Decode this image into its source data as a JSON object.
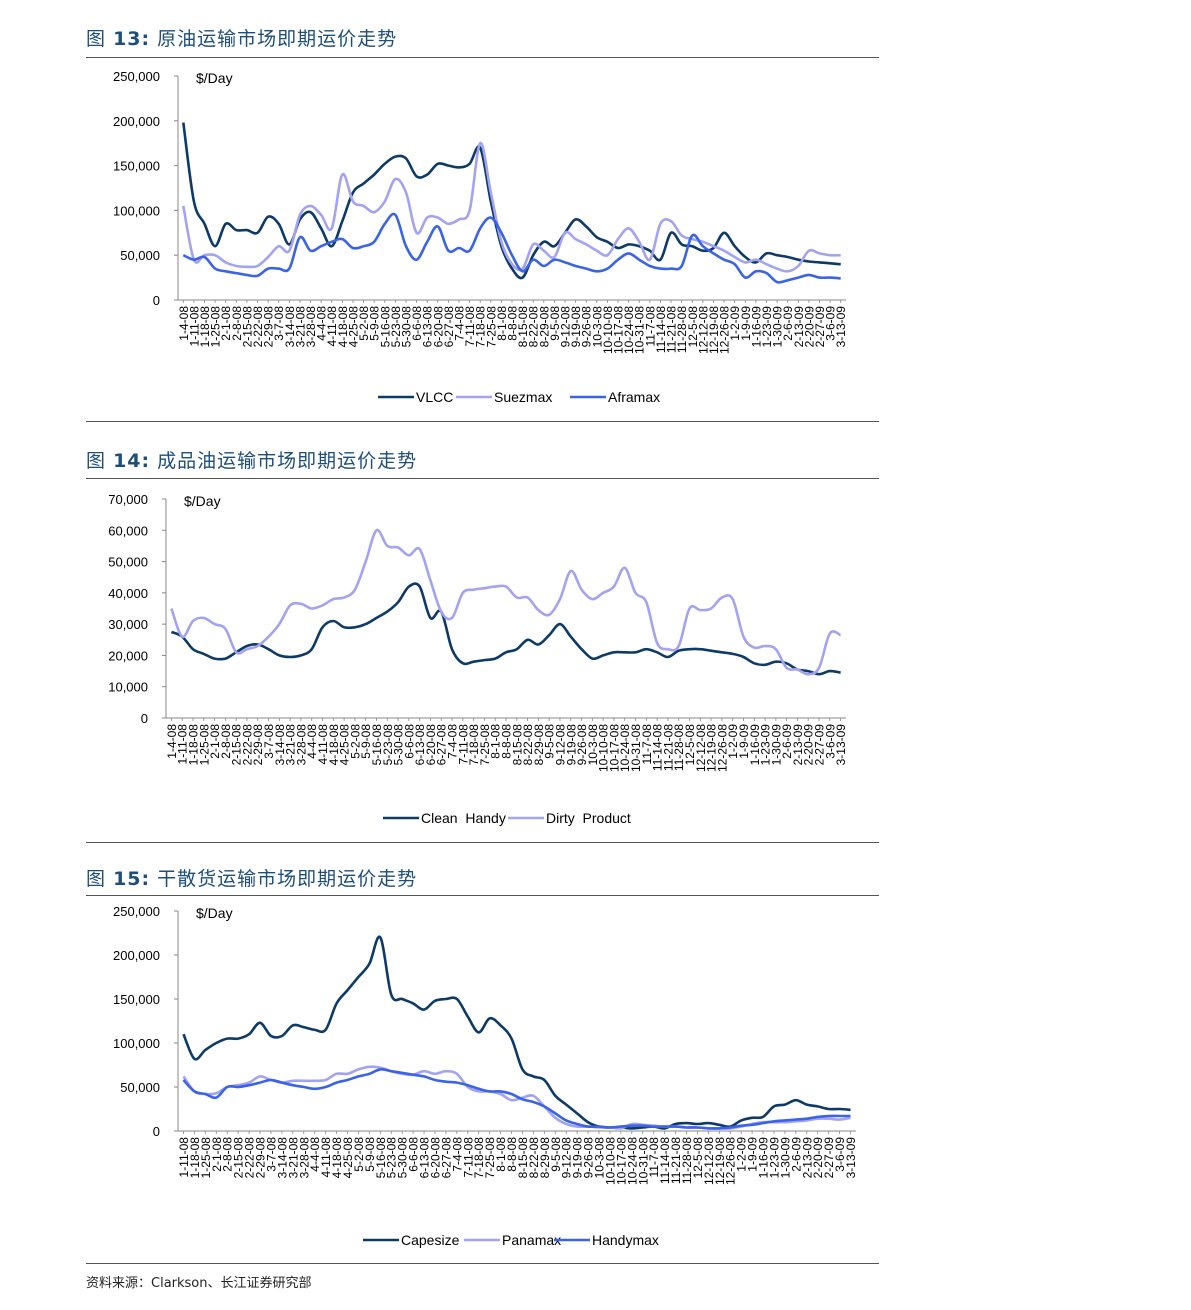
{
  "colors": {
    "dark": "#0d3a66",
    "light": "#a3a3f2",
    "mid": "#3a63e8",
    "title": "#1f4e79"
  },
  "figures": [
    {
      "label": "图",
      "number": "13:",
      "text": "原油运输市场即期运价走势"
    },
    {
      "label": "图",
      "number": "14:",
      "text": "成品油运输市场即期运价走势"
    },
    {
      "label": "图",
      "number": "15:",
      "text": "干散货运输市场即期运价走势"
    }
  ],
  "source_note": "资料来源：Clarkson、长江证券研究部",
  "chart_data": [
    {
      "type": "line",
      "unit_label": "$/Day",
      "ylim": [
        0,
        250000
      ],
      "yticks": [
        "250,000",
        "200,000",
        "150,000",
        "100,000",
        "50,000",
        "0"
      ],
      "categories": [
        "1-4-08",
        "1-11-08",
        "1-18-08",
        "1-25-08",
        "2-1-08",
        "2-8-08",
        "2-15-08",
        "2-22-08",
        "2-29-08",
        "3-7-08",
        "3-14-08",
        "3-21-08",
        "3-28-08",
        "4-4-08",
        "4-11-08",
        "4-18-08",
        "4-25-08",
        "5-2-08",
        "5-9-08",
        "5-16-08",
        "5-23-08",
        "5-30-08",
        "6-6-08",
        "6-13-08",
        "6-20-08",
        "6-27-08",
        "7-4-08",
        "7-11-08",
        "7-18-08",
        "7-25-08",
        "8-1-08",
        "8-8-08",
        "8-15-08",
        "8-22-08",
        "8-29-08",
        "9-5-08",
        "9-12-08",
        "9-19-08",
        "9-26-08",
        "10-3-08",
        "10-10-08",
        "10-17-08",
        "10-24-08",
        "10-31-08",
        "11-7-08",
        "11-14-08",
        "11-21-08",
        "11-28-08",
        "12-5-08",
        "12-12-08",
        "12-19-08",
        "12-26-08",
        "1-2-09",
        "1-9-09",
        "1-16-09",
        "1-23-09",
        "1-30-09",
        "2-6-09",
        "2-13-09",
        "2-20-09",
        "2-27-09",
        "3-6-09",
        "3-13-09"
      ],
      "series": [
        {
          "name": "VLCC",
          "color": "#0d3a66",
          "values": [
            198000,
            110000,
            85000,
            60000,
            85000,
            78000,
            78000,
            75000,
            93000,
            85000,
            62000,
            90000,
            98000,
            80000,
            60000,
            88000,
            120000,
            130000,
            140000,
            152000,
            160000,
            158000,
            138000,
            140000,
            152000,
            150000,
            148000,
            152000,
            170000,
            110000,
            60000,
            35000,
            25000,
            50000,
            65000,
            60000,
            75000,
            90000,
            82000,
            70000,
            65000,
            58000,
            62000,
            60000,
            55000,
            45000,
            75000,
            62000,
            60000,
            55000,
            58000,
            75000,
            60000,
            48000,
            42000,
            52000,
            50000,
            48000,
            45000,
            43000,
            42000,
            41000,
            40000
          ]
        },
        {
          "name": "Suezmax",
          "color": "#a3a3f2",
          "values": [
            105000,
            45000,
            50000,
            50000,
            42000,
            38000,
            37000,
            38000,
            48000,
            60000,
            55000,
            95000,
            105000,
            95000,
            80000,
            140000,
            110000,
            105000,
            98000,
            110000,
            135000,
            120000,
            75000,
            92000,
            92000,
            85000,
            90000,
            100000,
            175000,
            120000,
            65000,
            40000,
            35000,
            62000,
            55000,
            48000,
            75000,
            68000,
            62000,
            55000,
            50000,
            68000,
            80000,
            65000,
            45000,
            85000,
            88000,
            72000,
            68000,
            65000,
            60000,
            55000,
            48000,
            42000,
            45000,
            40000,
            35000,
            32000,
            38000,
            55000,
            52000,
            50000,
            50000
          ]
        },
        {
          "name": "Aframax",
          "color": "#3a63e8",
          "values": [
            50000,
            45000,
            48000,
            35000,
            32000,
            30000,
            28000,
            27000,
            35000,
            35000,
            35000,
            70000,
            55000,
            60000,
            65000,
            68000,
            58000,
            60000,
            65000,
            85000,
            95000,
            60000,
            45000,
            65000,
            82000,
            55000,
            58000,
            55000,
            80000,
            92000,
            75000,
            50000,
            32000,
            45000,
            38000,
            45000,
            42000,
            38000,
            35000,
            32000,
            35000,
            45000,
            52000,
            45000,
            38000,
            35000,
            35000,
            38000,
            72000,
            60000,
            52000,
            45000,
            40000,
            25000,
            32000,
            30000,
            20000,
            22000,
            25000,
            28000,
            25000,
            25000,
            24000
          ]
        }
      ]
    },
    {
      "type": "line",
      "unit_label": "$/Day",
      "ylim": [
        0,
        70000
      ],
      "yticks": [
        "70,000",
        "60,000",
        "50,000",
        "40,000",
        "30,000",
        "20,000",
        "10,000",
        "0"
      ],
      "categories": [
        "1-4-08",
        "1-11-08",
        "1-18-08",
        "1-25-08",
        "2-1-08",
        "2-8-08",
        "2-15-08",
        "2-22-08",
        "2-29-08",
        "3-7-08",
        "3-14-08",
        "3-21-08",
        "3-28-08",
        "4-4-08",
        "4-11-08",
        "4-18-08",
        "4-25-08",
        "5-2-08",
        "5-9-08",
        "5-16-08",
        "5-23-08",
        "5-30-08",
        "6-6-08",
        "6-13-08",
        "6-20-08",
        "6-27-08",
        "7-4-08",
        "7-11-08",
        "7-18-08",
        "7-25-08",
        "8-1-08",
        "8-8-08",
        "8-15-08",
        "8-22-08",
        "8-29-08",
        "9-5-08",
        "9-12-08",
        "9-19-08",
        "9-26-08",
        "10-3-08",
        "10-10-08",
        "10-17-08",
        "10-24-08",
        "10-31-08",
        "11-7-08",
        "11-14-08",
        "11-21-08",
        "11-28-08",
        "12-5-08",
        "12-12-08",
        "12-19-08",
        "12-26-08",
        "1-2-09",
        "1-9-09",
        "1-16-09",
        "1-23-09",
        "1-30-09",
        "2-6-09",
        "2-13-09",
        "2-20-09",
        "2-27-09",
        "3-6-09",
        "3-13-09"
      ],
      "series": [
        {
          "name": "Clean  Handy",
          "color": "#0d3a66",
          "values": [
            27500,
            26000,
            22000,
            20500,
            19000,
            19000,
            21000,
            23000,
            23500,
            22000,
            20000,
            19500,
            20000,
            22000,
            29000,
            31000,
            29000,
            29000,
            30000,
            32000,
            34000,
            37000,
            42000,
            42000,
            32000,
            34000,
            22000,
            17500,
            18000,
            18500,
            19000,
            21000,
            22000,
            25000,
            23500,
            26500,
            30000,
            26000,
            22000,
            19000,
            20000,
            21000,
            21000,
            21000,
            22000,
            21000,
            19500,
            21500,
            22000,
            22000,
            21500,
            21000,
            20500,
            19500,
            17500,
            17000,
            18000,
            17500,
            15500,
            15000,
            14000,
            15000,
            14500
          ]
        },
        {
          "name": "Dirty  Product",
          "color": "#a3a3f2",
          "values": [
            35000,
            26000,
            31000,
            32000,
            30000,
            28500,
            21000,
            22000,
            23000,
            26000,
            30000,
            36000,
            36500,
            35000,
            36000,
            38000,
            38500,
            41000,
            50000,
            60000,
            55000,
            54500,
            52000,
            54000,
            44000,
            34000,
            32000,
            40000,
            41000,
            41500,
            42000,
            42000,
            38500,
            38500,
            34500,
            33000,
            38000,
            47000,
            41000,
            38000,
            40000,
            42000,
            48000,
            40000,
            37000,
            24000,
            22000,
            23000,
            35000,
            34500,
            35000,
            38500,
            38000,
            26000,
            22500,
            23000,
            22000,
            16000,
            15500,
            14000,
            16000,
            27000,
            26500
          ]
        }
      ]
    },
    {
      "type": "line",
      "unit_label": "$/Day",
      "ylim": [
        0,
        250000
      ],
      "yticks": [
        "250,000",
        "200,000",
        "150,000",
        "100,000",
        "50,000",
        "0"
      ],
      "categories": [
        "1-11-08",
        "1-18-08",
        "1-25-08",
        "2-1-08",
        "2-8-08",
        "2-15-08",
        "2-22-08",
        "2-29-08",
        "3-7-08",
        "3-14-08",
        "3-21-08",
        "3-28-08",
        "4-4-08",
        "4-11-08",
        "4-18-08",
        "4-25-08",
        "5-2-08",
        "5-9-08",
        "5-16-08",
        "5-23-08",
        "5-30-08",
        "6-6-08",
        "6-13-08",
        "6-20-08",
        "6-27-08",
        "7-4-08",
        "7-11-08",
        "7-18-08",
        "7-25-08",
        "8-1-08",
        "8-8-08",
        "8-15-08",
        "8-22-08",
        "8-29-08",
        "9-5-08",
        "9-12-08",
        "9-19-08",
        "9-26-08",
        "10-3-08",
        "10-10-08",
        "10-17-08",
        "10-24-08",
        "10-31-08",
        "11-7-08",
        "11-14-08",
        "11-21-08",
        "11-28-08",
        "12-5-08",
        "12-12-08",
        "12-19-08",
        "12-26-08",
        "1-2-09",
        "1-9-09",
        "1-16-09",
        "1-23-09",
        "1-30-09",
        "2-6-09",
        "2-13-09",
        "2-20-09",
        "2-27-09",
        "3-6-09",
        "3-13-09"
      ],
      "series": [
        {
          "name": "Capesize",
          "color": "#0d3a66",
          "values": [
            110000,
            82000,
            92000,
            100000,
            105000,
            105000,
            110000,
            123000,
            108000,
            108000,
            120000,
            118000,
            115000,
            115000,
            145000,
            160000,
            175000,
            190000,
            220000,
            155000,
            150000,
            145000,
            138000,
            148000,
            150000,
            150000,
            130000,
            112000,
            128000,
            120000,
            105000,
            70000,
            62000,
            58000,
            40000,
            30000,
            20000,
            10000,
            5000,
            4000,
            4000,
            3000,
            4000,
            5000,
            3000,
            8000,
            9000,
            8000,
            9000,
            7000,
            5000,
            12000,
            15000,
            16000,
            28000,
            30000,
            35000,
            30000,
            28000,
            25000,
            25000,
            24000
          ]
        },
        {
          "name": "Panamax",
          "color": "#a3a3f2",
          "values": [
            62000,
            45000,
            42000,
            43000,
            50000,
            52000,
            55000,
            62000,
            58000,
            55000,
            57000,
            57000,
            57000,
            58000,
            65000,
            65000,
            70000,
            73000,
            72000,
            68000,
            65000,
            64000,
            68000,
            65000,
            68000,
            65000,
            50000,
            45000,
            45000,
            42000,
            35000,
            38000,
            40000,
            28000,
            15000,
            8000,
            5000,
            5000,
            4000,
            4000,
            3000,
            8000,
            7000,
            6000,
            5000,
            5000,
            4000,
            4000,
            3000,
            3000,
            3000,
            5000,
            8000,
            10000,
            10000,
            10000,
            11000,
            12000,
            14000,
            14000,
            13000,
            15000
          ]
        },
        {
          "name": "Handymax",
          "color": "#3a63e8",
          "values": [
            58000,
            45000,
            42000,
            38000,
            50000,
            50000,
            52000,
            55000,
            58000,
            55000,
            52000,
            50000,
            48000,
            50000,
            55000,
            58000,
            62000,
            65000,
            70000,
            68000,
            66000,
            64000,
            62000,
            58000,
            56000,
            55000,
            52000,
            48000,
            45000,
            45000,
            42000,
            36000,
            33000,
            28000,
            20000,
            12000,
            8000,
            5000,
            5000,
            4000,
            5000,
            6000,
            6000,
            5000,
            5000,
            5000,
            4000,
            4000,
            3000,
            3000,
            4000,
            6000,
            7000,
            9000,
            11000,
            12000,
            13000,
            14000,
            16000,
            17000,
            17000,
            17000
          ]
        }
      ]
    }
  ]
}
